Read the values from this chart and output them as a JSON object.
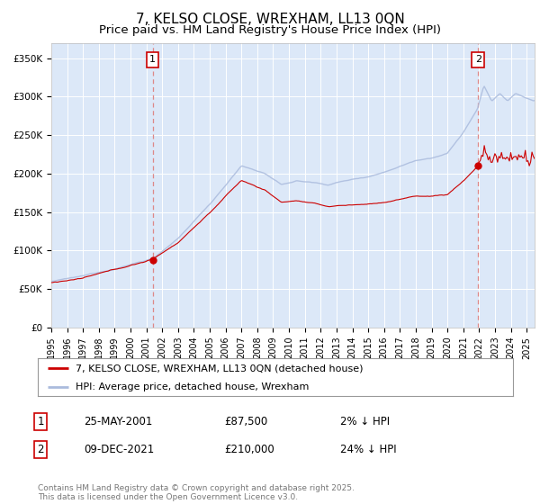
{
  "title": "7, KELSO CLOSE, WREXHAM, LL13 0QN",
  "subtitle": "Price paid vs. HM Land Registry's House Price Index (HPI)",
  "title_fontsize": 11,
  "subtitle_fontsize": 9.5,
  "plot_bg_color": "#dce8f8",
  "grid_color": "#ffffff",
  "ylabel_ticks": [
    "£0",
    "£50K",
    "£100K",
    "£150K",
    "£200K",
    "£250K",
    "£300K",
    "£350K"
  ],
  "ytick_vals": [
    0,
    50000,
    100000,
    150000,
    200000,
    250000,
    300000,
    350000
  ],
  "ylim": [
    0,
    370000
  ],
  "xlim_start": 1995.0,
  "xlim_end": 2025.5,
  "xtick_years": [
    1995,
    1996,
    1997,
    1998,
    1999,
    2000,
    2001,
    2002,
    2003,
    2004,
    2005,
    2006,
    2007,
    2008,
    2009,
    2010,
    2011,
    2012,
    2013,
    2014,
    2015,
    2016,
    2017,
    2018,
    2019,
    2020,
    2021,
    2022,
    2023,
    2024,
    2025
  ],
  "sale1_x": 2001.39,
  "sale1_y": 87500,
  "sale1_label": "1",
  "sale2_x": 2021.94,
  "sale2_y": 210000,
  "sale2_label": "2",
  "legend_line1": "7, KELSO CLOSE, WREXHAM, LL13 0QN (detached house)",
  "legend_line2": "HPI: Average price, detached house, Wrexham",
  "note1_label": "1",
  "note1_date": "25-MAY-2001",
  "note1_price": "£87,500",
  "note1_hpi": "2% ↓ HPI",
  "note2_label": "2",
  "note2_date": "09-DEC-2021",
  "note2_price": "£210,000",
  "note2_hpi": "24% ↓ HPI",
  "copyright": "Contains HM Land Registry data © Crown copyright and database right 2025.\nThis data is licensed under the Open Government Licence v3.0.",
  "line_color_property": "#cc0000",
  "line_color_hpi": "#aabbdd",
  "marker_box_color": "#cc0000",
  "vline_color": "#dd8888"
}
